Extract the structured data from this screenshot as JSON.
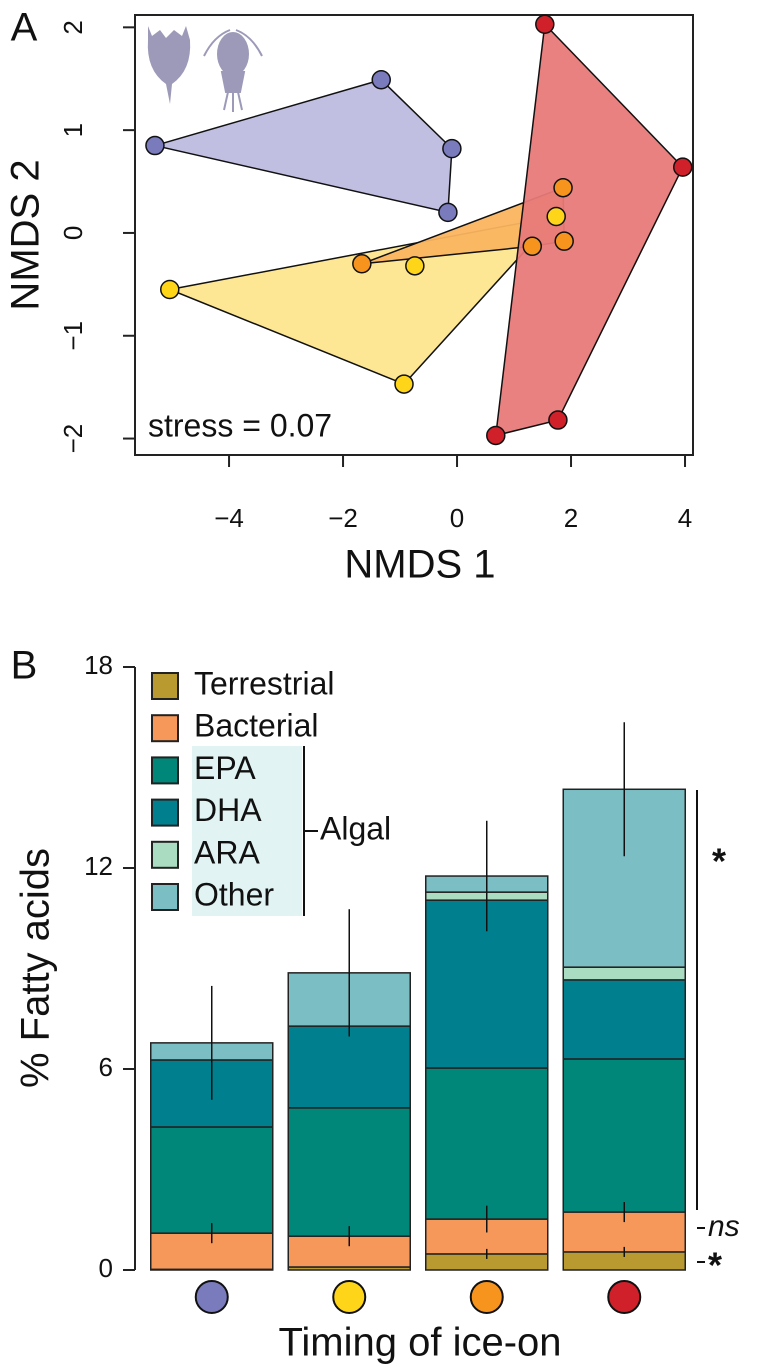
{
  "chart_data": [
    {
      "type": "scatter",
      "panel": "A",
      "x_label": "NMDS 1",
      "y_label": "NMDS 2",
      "annotation": "stress = 0.07",
      "xlim": [
        -5.65,
        4.14
      ],
      "ylim": [
        -2.16,
        2.12
      ],
      "xticks": [
        {
          "value": -4,
          "label": "−4"
        },
        {
          "value": -2,
          "label": "−2"
        },
        0,
        2,
        4
      ],
      "yticks": [
        {
          "value": -2,
          "label": "−2"
        },
        {
          "value": -1,
          "label": "−1"
        },
        0,
        1,
        2
      ],
      "series": [
        {
          "color": "#7a7bbd",
          "fill": "#bdbbdf",
          "x": [
            -5.3,
            -1.33,
            -0.09,
            -0.16
          ],
          "y": [
            0.85,
            1.49,
            0.82,
            0.2
          ]
        },
        {
          "color": "#ffd51a",
          "fill": "#fde68e",
          "x": [
            -5.04,
            -0.93,
            -0.74,
            1.74
          ],
          "y": [
            -0.55,
            -1.47,
            -0.32,
            0.16
          ]
        },
        {
          "color": "#f7941d",
          "fill": "#fbb560",
          "x": [
            -1.67,
            1.86,
            1.88,
            1.32
          ],
          "y": [
            -0.3,
            0.44,
            -0.08,
            -0.13
          ]
        },
        {
          "color": "#d0202a",
          "fill": "#e87a79",
          "x": [
            1.54,
            3.96,
            1.77,
            0.68
          ],
          "y": [
            2.03,
            0.64,
            -1.82,
            -1.97
          ]
        }
      ]
    },
    {
      "type": "stacked_bar",
      "panel": "B",
      "x_label": "Timing of ice-on",
      "y_label": "% Fatty acids",
      "categories": [
        null,
        null,
        null,
        null
      ],
      "category_colors": [
        "#7a7bbd",
        "#ffd51a",
        "#f7941d",
        "#d0202a"
      ],
      "ylim": [
        0,
        18
      ],
      "yticks": [
        0,
        6,
        12,
        18
      ],
      "group_label": "Algal",
      "annotations": [
        "*",
        "ns",
        "*"
      ],
      "series": [
        {
          "name": "Terrestrial",
          "color": "#b89a30",
          "values": [
            0.02,
            0.09,
            0.48,
            0.54
          ],
          "errors": [
            null,
            null,
            0.15,
            0.15
          ]
        },
        {
          "name": "Bacterial",
          "color": "#f6985a",
          "values": [
            1.08,
            0.92,
            1.04,
            1.19
          ],
          "errors": [
            0.3,
            0.3,
            0.4,
            0.3
          ]
        },
        {
          "name": "EPA",
          "color": "#00877a",
          "values": [
            3.17,
            3.83,
            4.51,
            4.57
          ],
          "errors": [
            null,
            null,
            null,
            null
          ]
        },
        {
          "name": "DHA",
          "color": "#00808f",
          "values": [
            2.0,
            2.44,
            5.01,
            2.36
          ],
          "errors": [
            null,
            null,
            null,
            null
          ]
        },
        {
          "name": "ARA",
          "color": "#a9dcc1",
          "values": [
            0,
            0,
            0.24,
            0.38
          ],
          "errors": [
            null,
            null,
            null,
            null
          ]
        },
        {
          "name": "Other",
          "color": "#7bbfc4",
          "values": [
            0.51,
            1.59,
            0.48,
            5.31
          ],
          "errors": [
            1.7,
            1.9,
            1.65,
            2.0
          ]
        }
      ]
    }
  ]
}
